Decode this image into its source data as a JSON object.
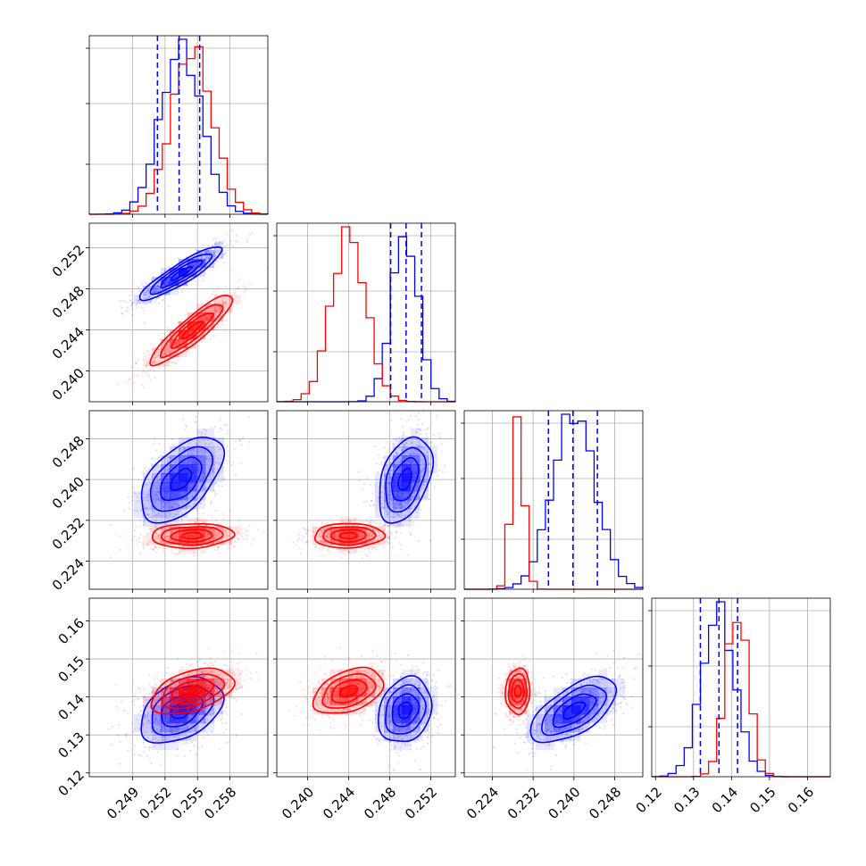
{
  "chart_data": {
    "type": "corner",
    "colors": {
      "sample_a": "#0000ff",
      "sample_b": "#ff0000",
      "grid": "#b0b0b0",
      "frame": "#000000"
    },
    "params": [
      {
        "range": [
          0.245,
          0.2615
        ],
        "ticks": [
          0.249,
          0.252,
          0.255,
          0.258
        ],
        "tick_labels": [
          "0.249",
          "0.252",
          "0.255",
          "0.258"
        ]
      },
      {
        "range": [
          0.237,
          0.2544
        ],
        "ticks": [
          0.24,
          0.244,
          0.248,
          0.252
        ],
        "tick_labels": [
          "0.240",
          "0.244",
          "0.248",
          "0.252"
        ]
      },
      {
        "range": [
          0.2185,
          0.2535
        ],
        "ticks": [
          0.224,
          0.232,
          0.24,
          0.248
        ],
        "tick_labels": [
          "0.224",
          "0.232",
          "0.240",
          "0.248"
        ]
      },
      {
        "range": [
          0.119,
          0.166
        ],
        "ticks": [
          0.12,
          0.13,
          0.14,
          0.15,
          0.16
        ],
        "tick_labels": [
          "0.12",
          "0.13",
          "0.14",
          "0.15",
          "0.16"
        ]
      }
    ],
    "series": [
      {
        "key": "sample_a",
        "color": "#0000ff",
        "means": [
          0.2535,
          0.2495,
          0.24,
          0.1365
        ],
        "sigmas": [
          0.0019,
          0.0013,
          0.0042,
          0.0043
        ],
        "quantiles": [
          [
            0.2513,
            0.2533,
            0.2552
          ],
          [
            0.2481,
            0.2496,
            0.2511
          ],
          [
            0.235,
            0.2398,
            0.2446
          ],
          [
            0.1318,
            0.1367,
            0.1416
          ]
        ],
        "correlations": [
          [
            1,
            0.9,
            0.55,
            0.4
          ],
          [
            0.9,
            1,
            0.4,
            0.2
          ],
          [
            0.55,
            0.4,
            1,
            0.62
          ],
          [
            0.4,
            0.2,
            0.62,
            1
          ]
        ]
      },
      {
        "key": "sample_b",
        "color": "#ff0000",
        "means": [
          0.2545,
          0.244,
          0.229,
          0.1415
        ],
        "sigmas": [
          0.0019,
          0.0017,
          0.0012,
          0.003
        ],
        "correlations": [
          [
            1,
            0.9,
            0.1,
            0.45
          ],
          [
            0.9,
            1,
            0.05,
            0.4
          ],
          [
            0.1,
            0.05,
            1,
            0.05
          ],
          [
            0.45,
            0.4,
            0.05,
            1
          ]
        ]
      }
    ],
    "contour_levels": [
      0.5,
      1.0,
      1.5,
      2.0
    ],
    "grid": true,
    "quantile_lines": "dashed, blue, on diagonal histograms",
    "y_tick_labels_shown_on": "left column rows 2-4",
    "x_tick_labels_shown_on": "bottom row"
  }
}
